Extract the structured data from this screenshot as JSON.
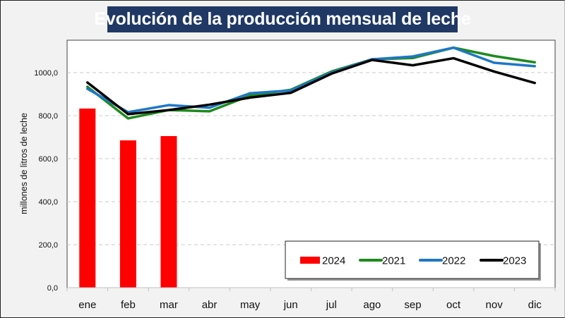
{
  "chart_data": {
    "type": "bar+line",
    "title": "Evolución de la producción mensual de leche",
    "xlabel": "",
    "ylabel": "millones de litros de leche",
    "ylim": [
      0,
      1100
    ],
    "yticks": [
      0,
      200,
      400,
      600,
      800,
      1000
    ],
    "ytick_labels": [
      "0,0",
      "200,0",
      "400,0",
      "600,0",
      "800,0",
      "1000,0"
    ],
    "grid": "horizontal dashed",
    "legend_position": "bottom-right",
    "categories": [
      "ene",
      "feb",
      "mar",
      "abr",
      "may",
      "jun",
      "jul",
      "ago",
      "sep",
      "oct",
      "nov",
      "dic"
    ],
    "series": [
      {
        "name": "2024",
        "kind": "bar",
        "color": "#ff0000",
        "values": [
          833,
          685,
          705,
          null,
          null,
          null,
          null,
          null,
          null,
          null,
          null,
          null
        ]
      },
      {
        "name": "2021",
        "kind": "line",
        "color": "#1e8a1e",
        "values": [
          934,
          787,
          826,
          820,
          893,
          920,
          1005,
          1062,
          1068,
          1116,
          1077,
          1048
        ]
      },
      {
        "name": "2022",
        "kind": "line",
        "color": "#1f77c4",
        "values": [
          925,
          816,
          849,
          837,
          904,
          917,
          1000,
          1062,
          1075,
          1116,
          1046,
          1030
        ]
      },
      {
        "name": "2023",
        "kind": "line",
        "color": "#000000",
        "values": [
          954,
          807,
          826,
          851,
          884,
          906,
          995,
          1059,
          1034,
          1067,
          1005,
          952
        ]
      }
    ]
  }
}
